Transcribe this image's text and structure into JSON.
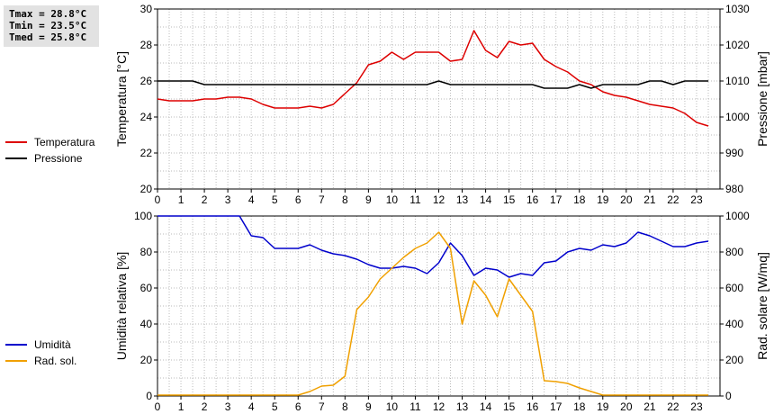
{
  "stats": {
    "tmax": "Tmax = 28.8°C",
    "tmin": "Tmin = 23.5°C",
    "tmed": "Tmed = 25.8°C"
  },
  "colors": {
    "temperature": "#dd0000",
    "pressure": "#000000",
    "humidity": "#0000cc",
    "radiation": "#f0a000",
    "grid": "#bbbbbb"
  },
  "chart_data": [
    {
      "type": "line",
      "panel": "top",
      "ylabel_left": "Temperatura [°C]",
      "ylabel_right": "Pressione [mbar]",
      "xlim": [
        0,
        24
      ],
      "ylim_left": [
        20,
        30
      ],
      "ylim_right": [
        980,
        1030
      ],
      "x_ticks": [
        0,
        1,
        2,
        3,
        4,
        5,
        6,
        7,
        8,
        9,
        10,
        11,
        12,
        13,
        14,
        15,
        16,
        17,
        18,
        19,
        20,
        21,
        22,
        23
      ],
      "y_ticks_left": [
        20,
        22,
        24,
        26,
        28,
        30
      ],
      "y_ticks_right": [
        980,
        990,
        1000,
        1010,
        1020,
        1030
      ],
      "grid": true,
      "legend_position": "left",
      "series": [
        {
          "name": "Temperatura",
          "axis": "left",
          "color": "#dd0000",
          "x": [
            0,
            0.5,
            1,
            1.5,
            2,
            2.5,
            3,
            3.5,
            4,
            4.5,
            5,
            5.5,
            6,
            6.5,
            7,
            7.5,
            8,
            8.5,
            9,
            9.5,
            10,
            10.5,
            11,
            11.5,
            12,
            12.5,
            13,
            13.5,
            14,
            14.5,
            15,
            15.5,
            16,
            16.5,
            17,
            17.5,
            18,
            18.5,
            19,
            19.5,
            20,
            20.5,
            21,
            21.5,
            22,
            22.5,
            23,
            23.5
          ],
          "y": [
            25.0,
            24.9,
            24.9,
            24.9,
            25.0,
            25.0,
            25.1,
            25.1,
            25.0,
            24.7,
            24.5,
            24.5,
            24.5,
            24.6,
            24.5,
            24.7,
            25.3,
            25.9,
            26.9,
            27.1,
            27.6,
            27.2,
            27.6,
            27.6,
            27.6,
            27.1,
            27.2,
            28.8,
            27.7,
            27.3,
            28.2,
            28.0,
            28.1,
            27.2,
            26.8,
            26.5,
            26.0,
            25.8,
            25.4,
            25.2,
            25.1,
            24.9,
            24.7,
            24.6,
            24.5,
            24.2,
            23.7,
            23.5
          ]
        },
        {
          "name": "Pressione",
          "axis": "right",
          "color": "#000000",
          "x": [
            0,
            1.5,
            2,
            8.5,
            11.5,
            12,
            12.5,
            16,
            16.5,
            17.5,
            18,
            18.5,
            19,
            20.5,
            21,
            21.5,
            22,
            22.5,
            23.5
          ],
          "y": [
            1010,
            1010,
            1009,
            1009,
            1009,
            1010,
            1009,
            1009,
            1008,
            1008,
            1009,
            1008,
            1009,
            1009,
            1010,
            1010,
            1009,
            1010,
            1010
          ]
        }
      ]
    },
    {
      "type": "line",
      "panel": "bottom",
      "ylabel_left": "Umidità relativa [%]",
      "ylabel_right": "Rad. solare [W/mq]",
      "xlim": [
        0,
        24
      ],
      "ylim_left": [
        0,
        100
      ],
      "ylim_right": [
        0,
        1000
      ],
      "x_ticks": [
        0,
        1,
        2,
        3,
        4,
        5,
        6,
        7,
        8,
        9,
        10,
        11,
        12,
        13,
        14,
        15,
        16,
        17,
        18,
        19,
        20,
        21,
        22,
        23
      ],
      "y_ticks_left": [
        0,
        20,
        40,
        60,
        80,
        100
      ],
      "y_ticks_right": [
        0,
        200,
        400,
        600,
        800,
        1000
      ],
      "grid": true,
      "legend_position": "left",
      "series": [
        {
          "name": "Umidità",
          "axis": "left",
          "color": "#0000cc",
          "x": [
            0,
            0.5,
            1,
            1.5,
            2,
            2.5,
            3,
            3.5,
            4,
            4.5,
            5,
            5.5,
            6,
            6.5,
            7,
            7.5,
            8,
            8.5,
            9,
            9.5,
            10,
            10.5,
            11,
            11.5,
            12,
            12.5,
            13,
            13.5,
            14,
            14.5,
            15,
            15.5,
            16,
            16.5,
            17,
            17.5,
            18,
            18.5,
            19,
            19.5,
            20,
            20.5,
            21,
            21.5,
            22,
            22.5,
            23,
            23.5
          ],
          "y": [
            100,
            100,
            100,
            100,
            100,
            100,
            100,
            100,
            89,
            88,
            82,
            82,
            82,
            84,
            81,
            79,
            78,
            76,
            73,
            71,
            71,
            72,
            71,
            68,
            74,
            85,
            78,
            67,
            71,
            70,
            66,
            68,
            67,
            74,
            75,
            80,
            82,
            81,
            84,
            83,
            85,
            91,
            89,
            86,
            83,
            83,
            85,
            86
          ]
        },
        {
          "name": "Rad. sol.",
          "axis": "right",
          "color": "#f0a000",
          "x": [
            0,
            0.5,
            1,
            1.5,
            2,
            2.5,
            3,
            3.5,
            4,
            4.5,
            5,
            5.5,
            6,
            6.5,
            7,
            7.5,
            8,
            8.5,
            9,
            9.5,
            10,
            10.5,
            11,
            11.5,
            12,
            12.5,
            13,
            13.5,
            14,
            14.5,
            15,
            15.5,
            16,
            16.5,
            17,
            17.5,
            18,
            18.5,
            19,
            19.5,
            20,
            20.5,
            21,
            21.5,
            22,
            22.5,
            23,
            23.5
          ],
          "y": [
            5,
            5,
            5,
            5,
            5,
            5,
            5,
            5,
            5,
            5,
            5,
            5,
            5,
            25,
            55,
            60,
            110,
            480,
            550,
            650,
            710,
            770,
            820,
            850,
            910,
            820,
            400,
            640,
            560,
            440,
            650,
            560,
            470,
            85,
            80,
            70,
            45,
            25,
            5,
            5,
            5,
            5,
            5,
            5,
            5,
            5,
            5,
            5
          ]
        }
      ]
    }
  ]
}
